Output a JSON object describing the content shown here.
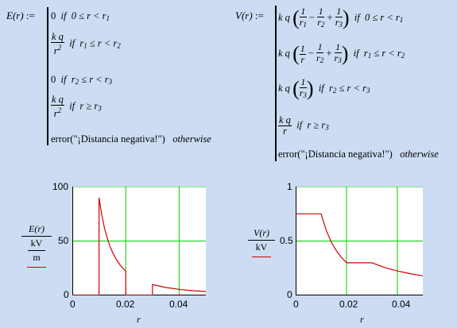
{
  "left_def": {
    "lhs": "E(r)",
    "assign": ":=",
    "cases": [
      {
        "expr": "0",
        "cond_if": "if",
        "cond": "0 ≤ r < r",
        "sub": "1"
      },
      {
        "num": "k q",
        "den": "r",
        "pow": "2",
        "cond_if": "if",
        "cond_a": "r",
        "sub_a": "1",
        "cond_b": "≤ r < r",
        "sub_b": "2"
      },
      {
        "expr": "0",
        "cond_if": "if",
        "cond_a": "r",
        "sub_a": "2",
        "cond_b": "≤ r < r",
        "sub_b": "3"
      },
      {
        "num": "k q",
        "den": "r",
        "pow": "2",
        "cond_if": "if",
        "cond": "r ≥ r",
        "sub": "3"
      },
      {
        "expr": "error(\"¡Distancia negativa!\")",
        "cond": "otherwise"
      }
    ]
  },
  "right_def": {
    "lhs": "V(r)",
    "assign": ":=",
    "cases": [
      {
        "lead": "k q",
        "terms": [
          "1/r1",
          "−",
          "1/r2",
          "+",
          "1/r3"
        ],
        "cond_if": "if",
        "cond": "0 ≤ r < r",
        "sub": "1"
      },
      {
        "lead": "k q",
        "terms": [
          "1/r",
          "−",
          "1/r2",
          "+",
          "1/r3"
        ],
        "cond_if": "if",
        "cond_a": "r",
        "sub_a": "1",
        "cond_b": "≤ r < r",
        "sub_b": "2"
      },
      {
        "lead": "k q",
        "terms": [
          "1/r3"
        ],
        "cond_if": "if",
        "cond_a": "r",
        "sub_a": "2",
        "cond_b": "≤ r < r",
        "sub_b": "3"
      },
      {
        "num": "k q",
        "den": "r",
        "cond_if": "if",
        "cond": "r ≥ r",
        "sub": "3"
      },
      {
        "expr": "error(\"¡Distancia negativa!\")",
        "cond": "otherwise"
      }
    ]
  },
  "colors": {
    "background": "#ccdcf2",
    "plot_bg": "#ffffff",
    "grid": "#00cc00",
    "curve": "#d40000",
    "axis": "#000000"
  },
  "chart_data": [
    {
      "type": "line",
      "xlabel": "r",
      "ylabel_main": "E(r)",
      "ylabel_num": "kV",
      "ylabel_den": "m",
      "xlim": [
        0,
        0.05
      ],
      "ylim": [
        0,
        100
      ],
      "x_ticks": [
        "0",
        "0.02",
        "0.04"
      ],
      "y_ticks": [
        "0",
        "50",
        "100"
      ],
      "grid": true,
      "series": [
        {
          "x": [
            0.0,
            0.01
          ],
          "y": [
            0,
            0
          ]
        },
        {
          "x": [
            0.01,
            0.01,
            0.011,
            0.012,
            0.013,
            0.014,
            0.015,
            0.016,
            0.017,
            0.018,
            0.019,
            0.02,
            0.02
          ],
          "y": [
            0,
            89.9,
            74.3,
            62.4,
            53.2,
            45.9,
            40.0,
            35.1,
            31.1,
            27.7,
            24.9,
            22.5,
            0
          ]
        },
        {
          "x": [
            0.02,
            0.03
          ],
          "y": [
            0,
            0
          ]
        },
        {
          "x": [
            0.03,
            0.03,
            0.035,
            0.04,
            0.045,
            0.05
          ],
          "y": [
            0,
            10.0,
            7.3,
            5.6,
            4.4,
            3.6
          ]
        }
      ]
    },
    {
      "type": "line",
      "xlabel": "r",
      "ylabel_main": "V(r)",
      "ylabel_num": "kV",
      "xlim": [
        0,
        0.05
      ],
      "ylim": [
        0,
        1
      ],
      "x_ticks": [
        "0",
        "0.02",
        "0.04"
      ],
      "y_ticks": [
        "0",
        "0.5",
        "1"
      ],
      "grid": true,
      "series": [
        {
          "x": [
            0.0,
            0.01,
            0.012,
            0.014,
            0.016,
            0.018,
            0.02,
            0.03,
            0.035,
            0.04,
            0.045,
            0.05
          ],
          "y": [
            0.75,
            0.75,
            0.6,
            0.49,
            0.41,
            0.35,
            0.3,
            0.3,
            0.257,
            0.225,
            0.2,
            0.18
          ]
        }
      ]
    }
  ]
}
